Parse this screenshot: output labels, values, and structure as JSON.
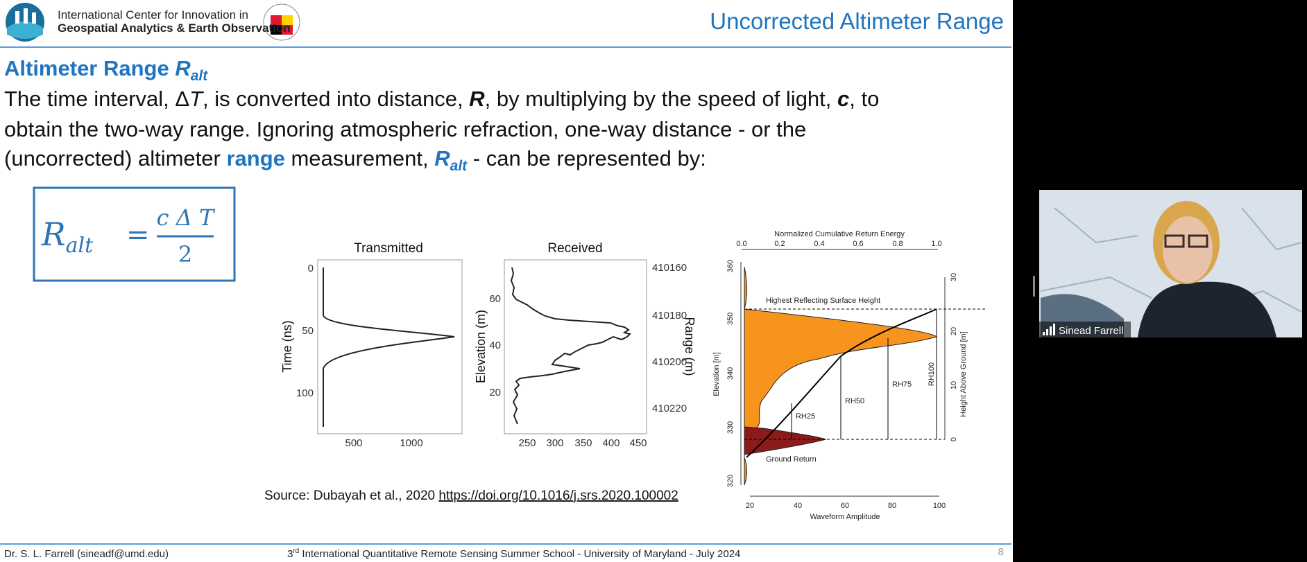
{
  "header": {
    "org_line1": "International Center for Innovation in",
    "org_line2": "Geospatial Analytics & Earth Observation",
    "slide_title": "Uncorrected Altimeter Range"
  },
  "heading": {
    "text": "Altimeter Range ",
    "symbol": "R",
    "subscript": "alt"
  },
  "body": [
    "The time interval, Δ",
    "T",
    ", is converted into distance, ",
    "R",
    ", by multiplying by the speed of light, ",
    "c",
    ", to",
    "obtain the two-way range. Ignoring atmospheric refraction, one-way distance - or the",
    "(uncorrected) altimeter ",
    "range",
    " measurement, ",
    "R",
    "alt",
    " - can be represented by:"
  ],
  "formula": {
    "symbol": "R",
    "subscript": "alt",
    "equals": "=",
    "numerator": "c Δ T",
    "denominator": "2"
  },
  "transmitted": {
    "title": "Transmitted",
    "y_label": "Time (ns)",
    "yticks": [
      "0",
      "50",
      "100"
    ],
    "xticks": [
      "500",
      "1000"
    ]
  },
  "received": {
    "title": "Received",
    "y_label": "Elevation (m)",
    "y2_label": "Range (m)",
    "yticks": [
      "20",
      "40",
      "60"
    ],
    "y2ticks": [
      "410160",
      "410180",
      "410200",
      "410220"
    ],
    "xticks": [
      "250",
      "300",
      "350",
      "400",
      "450"
    ]
  },
  "waveform": {
    "top_label": "Normalized Cumulative Return Energy",
    "top_ticks": [
      "0.0",
      "0.2",
      "0.4",
      "0.6",
      "0.8",
      "1.0"
    ],
    "x_label": "Waveform Amplitude",
    "xticks": [
      "20",
      "40",
      "60",
      "80",
      "100"
    ],
    "y_label": "Elevation [m]",
    "yticks": [
      "320",
      "330",
      "340",
      "350",
      "360"
    ],
    "y2_label": "Height Above Ground [m]",
    "y2ticks": [
      "0",
      "10",
      "20",
      "30"
    ],
    "annotations": [
      "Highest Reflecting Surface Height",
      "Ground Return",
      "RH25",
      "RH50",
      "RH75",
      "RH100"
    ]
  },
  "source": {
    "text": "Source: Dubayah et al., 2020 ",
    "link": "https://doi.org/10.1016/j.srs.2020.100002"
  },
  "footer": {
    "author": "Dr. S. L. Farrell (sineadf@umd.edu)",
    "event_ordinal": "3",
    "event_suffix": "rd",
    "event": " International Quantitative Remote Sensing Summer School  - University of Maryland - July 2024",
    "page": "8"
  },
  "video": {
    "participant": "Sinead Farrell"
  }
}
